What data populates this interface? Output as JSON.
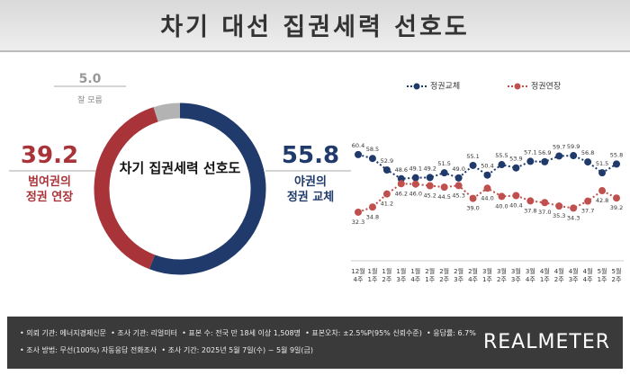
{
  "title": "차기 대선 집권세력 선호도",
  "chart_data": [
    {
      "type": "donut",
      "center_label": "차기 집권세력 선호도",
      "categories": [
        "야권의\n정권 교체",
        "범여권의\n정권 연장",
        "잘 모름"
      ],
      "values": [
        55.8,
        39.2,
        5.0
      ],
      "value_labels": [
        "55.8",
        "39.2",
        "5.0"
      ],
      "colors": [
        "#1f3a6b",
        "#a8343a",
        "#b3b3b3"
      ]
    },
    {
      "type": "line",
      "categories": [
        "12월\n4주",
        "1월\n1주",
        "1월\n2주",
        "1월\n3주",
        "1월\n4주",
        "2월\n1주",
        "2월\n2주",
        "2월\n3주",
        "2월\n4주",
        "3월\n1주",
        "3월\n2주",
        "3월\n3주",
        "3월\n4주",
        "4월\n1주",
        "4월\n2주",
        "4월\n3주",
        "4월\n4주",
        "5월\n1주",
        "5월\n2주"
      ],
      "series": [
        {
          "name": "정권교체",
          "color": "#1f3a6b",
          "values": [
            60.4,
            58.5,
            52.9,
            48.6,
            49.1,
            49.2,
            51.5,
            49.0,
            55.1,
            50.4,
            55.5,
            53.9,
            57.1,
            56.9,
            59.7,
            59.9,
            56.8,
            51.5,
            55.8
          ],
          "value_labels": [
            "60.4",
            "58.5",
            "52.9",
            "48.6",
            "49.1",
            "49.2",
            "51.5",
            "49.0",
            "55.1",
            "50.4",
            "55.5",
            "53.9",
            "57.1",
            "56.9",
            "59.7",
            "59.9",
            "56.8",
            "51.5",
            "55.8"
          ]
        },
        {
          "name": "정권연장",
          "color": "#c0504d",
          "values": [
            32.3,
            34.8,
            41.2,
            46.2,
            46.0,
            45.2,
            44.5,
            45.3,
            39.0,
            44.0,
            40.0,
            40.4,
            37.8,
            37.0,
            35.3,
            34.3,
            37.7,
            42.8,
            39.2
          ],
          "value_labels": [
            "32.3",
            "34.8",
            "41.2",
            "46.2",
            "46.0",
            "45.2",
            "44.5",
            "45.3",
            "39.0",
            "44.0",
            "40.0",
            "40.4",
            "37.8",
            "37.0",
            "35.3",
            "34.3",
            "37.7",
            "42.8",
            "39.2"
          ]
        }
      ],
      "ylim": [
        20,
        70
      ]
    }
  ],
  "footer": {
    "notes": [
      "• 의뢰 기관: 에너지경제신문  • 조사 기관: 리얼미터  • 표본 수: 전국 만 18세 이상 1,508명  • 표본오차: ±2.5%P(95% 신뢰수준)  • 응답률: 6.7%",
      "• 조사 방법: 무선(100%) 자동응답 전화조사  • 조사 기간: 2025년 5월 7일(수) ~ 5월 9일(금)"
    ],
    "logo": "REALMETER"
  }
}
